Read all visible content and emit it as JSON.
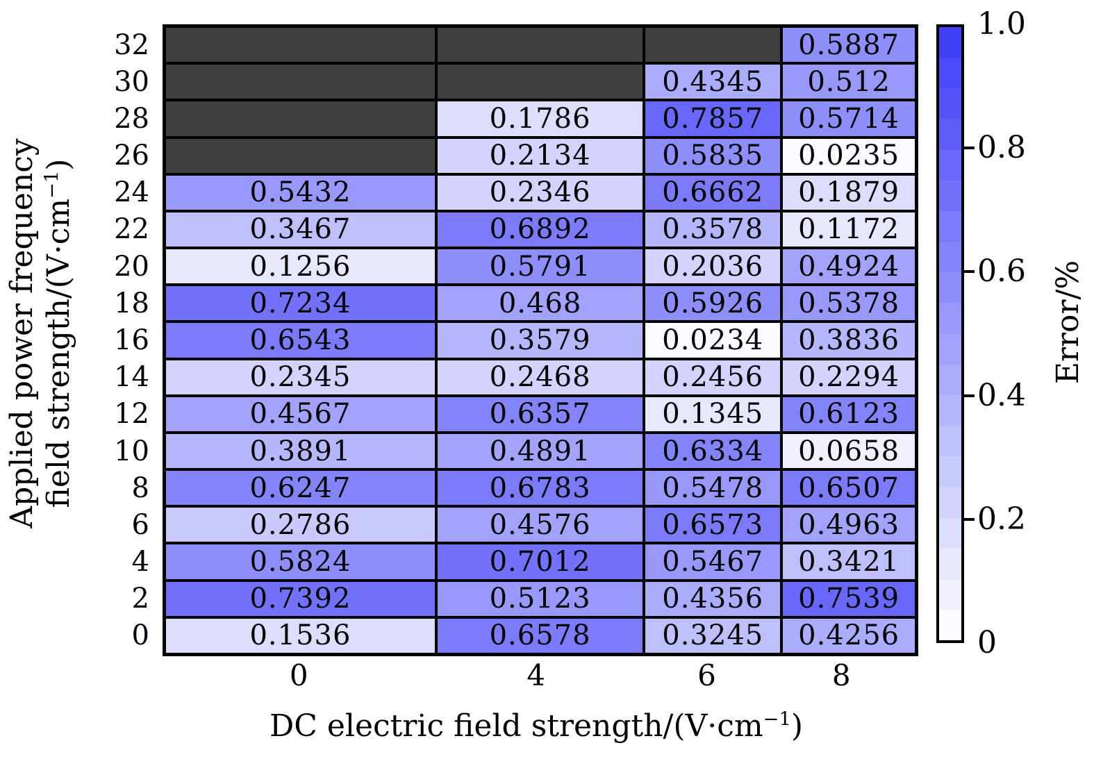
{
  "chart_data": {
    "type": "heatmap",
    "xlabel": {
      "prefix": "DC electric field strength/(V·cm",
      "sup": "−1",
      "suffix": ")"
    },
    "ylabel": {
      "line1": "Applied power frequency",
      "line2_prefix": "field strength/(V·cm",
      "line2_sup": "−1",
      "line2_suffix": ")"
    },
    "x_categories": [
      "0",
      "4",
      "6",
      "8"
    ],
    "y_categories": [
      "32",
      "30",
      "28",
      "26",
      "24",
      "22",
      "20",
      "18",
      "16",
      "14",
      "12",
      "10",
      "8",
      "6",
      "4",
      "2",
      "0"
    ],
    "rows": [
      {
        "y": "32",
        "values": [
          null,
          null,
          null,
          0.5887
        ]
      },
      {
        "y": "30",
        "values": [
          null,
          null,
          0.4345,
          0.512
        ]
      },
      {
        "y": "28",
        "values": [
          null,
          0.1786,
          0.7857,
          0.5714
        ]
      },
      {
        "y": "26",
        "values": [
          null,
          0.2134,
          0.5835,
          0.0235
        ]
      },
      {
        "y": "24",
        "values": [
          0.5432,
          0.2346,
          0.6662,
          0.1879
        ]
      },
      {
        "y": "22",
        "values": [
          0.3467,
          0.6892,
          0.3578,
          0.1172
        ]
      },
      {
        "y": "20",
        "values": [
          0.1256,
          0.5791,
          0.2036,
          0.4924
        ]
      },
      {
        "y": "18",
        "values": [
          0.7234,
          0.468,
          0.5926,
          0.5378
        ]
      },
      {
        "y": "16",
        "values": [
          0.6543,
          0.3579,
          0.0234,
          0.3836
        ]
      },
      {
        "y": "14",
        "values": [
          0.2345,
          0.2468,
          0.2456,
          0.2294
        ]
      },
      {
        "y": "12",
        "values": [
          0.4567,
          0.6357,
          0.1345,
          0.6123
        ]
      },
      {
        "y": "10",
        "values": [
          0.3891,
          0.4891,
          0.6334,
          0.0658
        ]
      },
      {
        "y": "8",
        "values": [
          0.6247,
          0.6783,
          0.5478,
          0.6507
        ]
      },
      {
        "y": "6",
        "values": [
          0.2786,
          0.4576,
          0.6573,
          0.4963
        ]
      },
      {
        "y": "4",
        "values": [
          0.5824,
          0.7012,
          0.5467,
          0.3421
        ]
      },
      {
        "y": "2",
        "values": [
          0.7392,
          0.5123,
          0.4356,
          0.7539
        ]
      },
      {
        "y": "0",
        "values": [
          0.1536,
          0.6578,
          0.3245,
          0.4256
        ]
      }
    ],
    "colorbar": {
      "label": "Error/%",
      "min": 0,
      "max": 1,
      "bands": 20,
      "ticks": [
        {
          "label": "1.0",
          "value": 1.0
        },
        {
          "label": "0.8",
          "value": 0.8
        },
        {
          "label": "0.6",
          "value": 0.6
        },
        {
          "label": "0.4",
          "value": 0.4
        },
        {
          "label": "0.2",
          "value": 0.2
        },
        {
          "label": "0",
          "value": 0.0
        }
      ]
    },
    "colors": {
      "scale_low": "#ffffff",
      "scale_high": "#3b3bf7",
      "missing_cell": "#3f3f3f",
      "grid_line": "#000000",
      "text": "#000000"
    },
    "layout": {
      "grid": "on",
      "legend_position": "right-colorbar",
      "x_axis_range": "categorical",
      "y_axis_range": "categorical"
    }
  }
}
